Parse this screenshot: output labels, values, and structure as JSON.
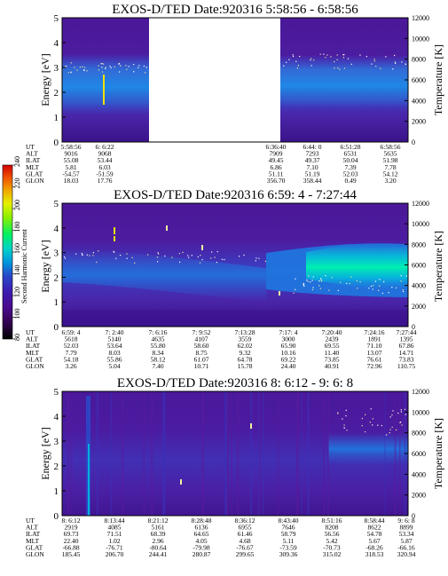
{
  "colorbar": {
    "label": "Second Harmonic Current",
    "ticks": [
      "240",
      "220",
      "200",
      "180",
      "160",
      "140",
      "120",
      "100",
      "80"
    ],
    "colors": [
      "#000000",
      "#2d0046",
      "#4a0a8c",
      "#3c1eb4",
      "#2846c8",
      "#1e64dc",
      "#0096dc",
      "#00c8d2",
      "#00e6b4",
      "#00f064",
      "#8cf000",
      "#e6f000",
      "#f0b400",
      "#f07800",
      "#e63c00",
      "#d20000"
    ]
  },
  "chart_data": [
    {
      "type": "heatmap",
      "title": "EXOS-D/TED   Date:920316  5:58:56 - 6:58:56",
      "ylabel": "Energy [eV]",
      "y2label": "Temperature [K]",
      "ylim": [
        0,
        5
      ],
      "y2lim": [
        0,
        12000
      ],
      "yticks": [
        "5",
        "4",
        "3",
        "2",
        "1",
        "0"
      ],
      "y2ticks": [
        "12000",
        "10000",
        "8000",
        "6000",
        "4000",
        "2000",
        "0"
      ],
      "data_gap": "6:22 - 6:36:40",
      "row_labels": [
        "UT",
        "ALT",
        "ILAT",
        "MLT",
        "GLAT",
        "GLON"
      ],
      "columns": [
        [
          "5:58:56",
          "9016",
          "55.08",
          "5.81",
          "-54.57",
          "18.03"
        ],
        [
          "6: 6:22",
          "9068",
          "53.44",
          "6.03",
          "-51.59",
          "17.76"
        ],
        [
          "6:36:40",
          "7909",
          "49.45",
          "6.86",
          "51.11",
          "356.70"
        ],
        [
          "6:44: 0",
          "7293",
          "49.37",
          "7.10",
          "51.19",
          "358.44"
        ],
        [
          "6:51:28",
          "6531",
          "50.04",
          "7.39",
          "52.03",
          "0.49"
        ],
        [
          "6:58:56",
          "5635",
          "51.98",
          "7.78",
          "54.12",
          "3.20"
        ]
      ]
    },
    {
      "type": "heatmap",
      "title": "EXOS-D/TED   Date:920316  6:59: 4 - 7:27:44",
      "ylabel": "Energy [eV]",
      "y2label": "Temperature [K]",
      "ylim": [
        0,
        5
      ],
      "y2lim": [
        0,
        12000
      ],
      "yticks": [
        "5",
        "4",
        "3",
        "2",
        "1",
        "0"
      ],
      "y2ticks": [
        "12000",
        "10000",
        "8000",
        "6000",
        "4000",
        "2000",
        "0"
      ],
      "row_labels": [
        "UT",
        "ALT",
        "ILAT",
        "MLT",
        "GLAT",
        "GLON"
      ],
      "columns": [
        [
          "6:59: 4",
          "5618",
          "52.03",
          "7.79",
          "54.18",
          "3.26"
        ],
        [
          "7: 2:40",
          "5140",
          "53.64",
          "8.03",
          "55.86",
          "5.04"
        ],
        [
          "7: 6:16",
          "4635",
          "55.80",
          "8.34",
          "58.12",
          "7.40"
        ],
        [
          "7: 9:52",
          "4107",
          "58.60",
          "8.75",
          "61.07",
          "10.71"
        ],
        [
          "7:13:28",
          "3559",
          "62.02",
          "9.32",
          "64.78",
          "15.78"
        ],
        [
          "7:17: 4",
          "3000",
          "65.90",
          "10.16",
          "69.22",
          "24.40"
        ],
        [
          "7:20:40",
          "2439",
          "69.55",
          "11.40",
          "73.85",
          "40.91"
        ],
        [
          "7:24:16",
          "1891",
          "71.10",
          "13.07",
          "76.61",
          "72.96"
        ],
        [
          "7:27:44",
          "1395",
          "67.86",
          "14.71",
          "73.83",
          "110.75"
        ]
      ]
    },
    {
      "type": "heatmap",
      "title": "EXOS-D/TED   Date:920316  8: 6:12 - 9: 6: 8",
      "ylabel": "Energy [eV]",
      "y2label": "Temperature [K]",
      "ylim": [
        0,
        5
      ],
      "y2lim": [
        0,
        12000
      ],
      "yticks": [
        "5",
        "4",
        "3",
        "2",
        "1",
        "0"
      ],
      "y2ticks": [
        "12000",
        "10000",
        "8000",
        "6000",
        "4000",
        "2000",
        "0"
      ],
      "row_labels": [
        "UT",
        "ALT",
        "ILAT",
        "MLT",
        "GLAT",
        "GLON"
      ],
      "columns": [
        [
          "8: 6:12",
          "2919",
          "69.73",
          "22.40",
          "-66.88",
          "185.45"
        ],
        [
          "8:13:44",
          "4085",
          "71.51",
          "1.02",
          "-76.71",
          "206.70"
        ],
        [
          "8:21:12",
          "5161",
          "68.39",
          "2.96",
          "-80.64",
          "244.41"
        ],
        [
          "8:28:48",
          "6136",
          "64.65",
          "4.05",
          "-79.98",
          "280.87"
        ],
        [
          "8:36:12",
          "6955",
          "61.46",
          "4.68",
          "-76.67",
          "299.65"
        ],
        [
          "8:43:40",
          "7646",
          "58.79",
          "5.11",
          "-73.59",
          "309.36"
        ],
        [
          "8:51:16",
          "8208",
          "56.56",
          "5.42",
          "-70.73",
          "315.02"
        ],
        [
          "8:58:44",
          "8622",
          "54.78",
          "5.67",
          "-68.26",
          "318.53"
        ],
        [
          "9: 6: 8",
          "8899",
          "53.34",
          "5.87",
          "-66.16",
          "320.94"
        ]
      ]
    }
  ]
}
